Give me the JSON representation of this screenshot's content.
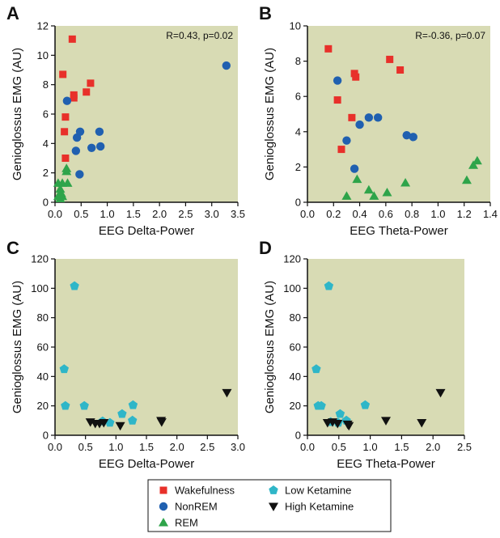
{
  "colors": {
    "plot_bg": "#d8dbb4",
    "Wakefulness": "#e8302a",
    "NonREM": "#2060b0",
    "REM": "#2ea44a",
    "Low Ketamine": "#2fb6c8",
    "High Ketamine": "#111111"
  },
  "legend": {
    "entries": [
      {
        "name": "Wakefulness",
        "marker": "square"
      },
      {
        "name": "NonREM",
        "marker": "circle"
      },
      {
        "name": "REM",
        "marker": "triangle-up"
      },
      {
        "name": "Low Ketamine",
        "marker": "pentagon"
      },
      {
        "name": "High Ketamine",
        "marker": "triangle-down"
      }
    ]
  },
  "chart_data": [
    {
      "panel": "A",
      "type": "scatter",
      "xlabel": "EEG Delta-Power",
      "ylabel": "Genioglossus EMG (AU)",
      "xlim": [
        0,
        3.5
      ],
      "ylim": [
        0,
        12
      ],
      "xticks": [
        "0.0",
        "0.5",
        "1.0",
        "1.5",
        "2.0",
        "2.5",
        "3.0",
        "3.5"
      ],
      "yticks": [
        "0",
        "2",
        "4",
        "6",
        "8",
        "10",
        "12"
      ],
      "annotation": "R=0.43, p=0.02",
      "series": [
        {
          "name": "Wakefulness",
          "marker": "square",
          "points": [
            [
              0.33,
              11.1
            ],
            [
              0.15,
              8.7
            ],
            [
              0.36,
              7.3
            ],
            [
              0.36,
              7.1
            ],
            [
              0.2,
              5.8
            ],
            [
              0.18,
              4.8
            ],
            [
              0.2,
              3.0
            ],
            [
              0.6,
              7.5
            ],
            [
              0.68,
              8.1
            ]
          ]
        },
        {
          "name": "NonREM",
          "marker": "circle",
          "points": [
            [
              0.23,
              6.9
            ],
            [
              0.42,
              4.4
            ],
            [
              0.48,
              4.8
            ],
            [
              0.4,
              3.5
            ],
            [
              0.47,
              1.9
            ],
            [
              0.7,
              3.7
            ],
            [
              0.87,
              3.8
            ],
            [
              0.85,
              4.8
            ],
            [
              3.28,
              9.3
            ]
          ]
        },
        {
          "name": "REM",
          "marker": "triangle-up",
          "points": [
            [
              0.22,
              2.3
            ],
            [
              0.22,
              2.1
            ],
            [
              0.06,
              1.3
            ],
            [
              0.14,
              1.3
            ],
            [
              0.24,
              1.3
            ],
            [
              0.1,
              0.9
            ],
            [
              0.12,
              0.6
            ],
            [
              0.06,
              0.4
            ],
            [
              0.14,
              0.4
            ],
            [
              0.1,
              0.25
            ]
          ]
        }
      ]
    },
    {
      "panel": "B",
      "type": "scatter",
      "xlabel": "EEG Theta-Power",
      "ylabel": "Genioglossus EMG (AU)",
      "xlim": [
        0,
        1.4
      ],
      "ylim": [
        0,
        10
      ],
      "xticks": [
        "0.0",
        "0.2",
        "0.4",
        "0.6",
        "0.8",
        "1.0",
        "1.2",
        "1.4"
      ],
      "yticks": [
        "0",
        "2",
        "4",
        "6",
        "8",
        "10"
      ],
      "annotation": "R=-0.36, p=0.07",
      "series": [
        {
          "name": "Wakefulness",
          "marker": "square",
          "points": [
            [
              0.16,
              8.7
            ],
            [
              0.23,
              5.8
            ],
            [
              0.26,
              3.0
            ],
            [
              0.34,
              4.8
            ],
            [
              0.36,
              7.3
            ],
            [
              0.37,
              7.1
            ],
            [
              0.63,
              8.1
            ],
            [
              0.71,
              7.5
            ]
          ]
        },
        {
          "name": "NonREM",
          "marker": "circle",
          "points": [
            [
              0.23,
              6.9
            ],
            [
              0.3,
              3.5
            ],
            [
              0.36,
              1.9
            ],
            [
              0.4,
              4.4
            ],
            [
              0.47,
              4.8
            ],
            [
              0.54,
              4.8
            ],
            [
              0.76,
              3.8
            ],
            [
              0.81,
              3.7
            ]
          ]
        },
        {
          "name": "REM",
          "marker": "triangle-up",
          "points": [
            [
              0.3,
              0.35
            ],
            [
              0.38,
              1.3
            ],
            [
              0.47,
              0.7
            ],
            [
              0.51,
              0.35
            ],
            [
              0.61,
              0.55
            ],
            [
              0.75,
              1.1
            ],
            [
              1.22,
              1.25
            ],
            [
              1.27,
              2.1
            ],
            [
              1.3,
              2.35
            ]
          ]
        }
      ]
    },
    {
      "panel": "C",
      "type": "scatter",
      "xlabel": "EEG Delta-Power",
      "ylabel": "Genioglossus EMG (AU)",
      "xlim": [
        0,
        3.0
      ],
      "ylim": [
        0,
        120
      ],
      "xticks": [
        "0.0",
        "0.5",
        "1.0",
        "1.5",
        "2.0",
        "2.5",
        "3.0"
      ],
      "yticks": [
        "0",
        "20",
        "40",
        "60",
        "80",
        "100",
        "120"
      ],
      "series": [
        {
          "name": "Low Ketamine",
          "marker": "pentagon",
          "points": [
            [
              0.32,
              101.5
            ],
            [
              0.15,
              45.0
            ],
            [
              0.17,
              20.0
            ],
            [
              0.48,
              20.0
            ],
            [
              1.28,
              20.5
            ],
            [
              1.1,
              14.5
            ],
            [
              1.27,
              10.0
            ],
            [
              0.78,
              9.5
            ],
            [
              0.9,
              8.5
            ]
          ]
        },
        {
          "name": "High Ketamine",
          "marker": "triangle-down",
          "points": [
            [
              2.82,
              29.0
            ],
            [
              0.58,
              9.0
            ],
            [
              0.66,
              8.0
            ],
            [
              0.73,
              8.0
            ],
            [
              0.8,
              8.5
            ],
            [
              1.07,
              6.5
            ],
            [
              1.74,
              10.0
            ],
            [
              1.75,
              9.0
            ]
          ]
        }
      ]
    },
    {
      "panel": "D",
      "type": "scatter",
      "xlabel": "EEG Theta-Power",
      "ylabel": "Genioglossus EMG (AU)",
      "xlim": [
        0,
        2.5
      ],
      "ylim": [
        0,
        120
      ],
      "xticks": [
        "0.0",
        "0.5",
        "1.0",
        "1.5",
        "2.0",
        "2.5"
      ],
      "yticks": [
        "0",
        "20",
        "40",
        "60",
        "80",
        "100",
        "120"
      ],
      "series": [
        {
          "name": "Low Ketamine",
          "marker": "pentagon",
          "points": [
            [
              0.34,
              101.5
            ],
            [
              0.14,
              45.0
            ],
            [
              0.17,
              20.0
            ],
            [
              0.22,
              20.0
            ],
            [
              0.92,
              20.5
            ],
            [
              0.52,
              14.5
            ],
            [
              0.62,
              10.0
            ],
            [
              0.37,
              9.0
            ],
            [
              0.49,
              8.5
            ]
          ]
        },
        {
          "name": "High Ketamine",
          "marker": "triangle-down",
          "points": [
            [
              2.12,
              29.0
            ],
            [
              0.32,
              8.5
            ],
            [
              0.4,
              9.0
            ],
            [
              0.48,
              8.0
            ],
            [
              0.64,
              7.5
            ],
            [
              0.66,
              6.5
            ],
            [
              1.25,
              10.0
            ],
            [
              1.82,
              8.5
            ]
          ]
        }
      ]
    }
  ]
}
